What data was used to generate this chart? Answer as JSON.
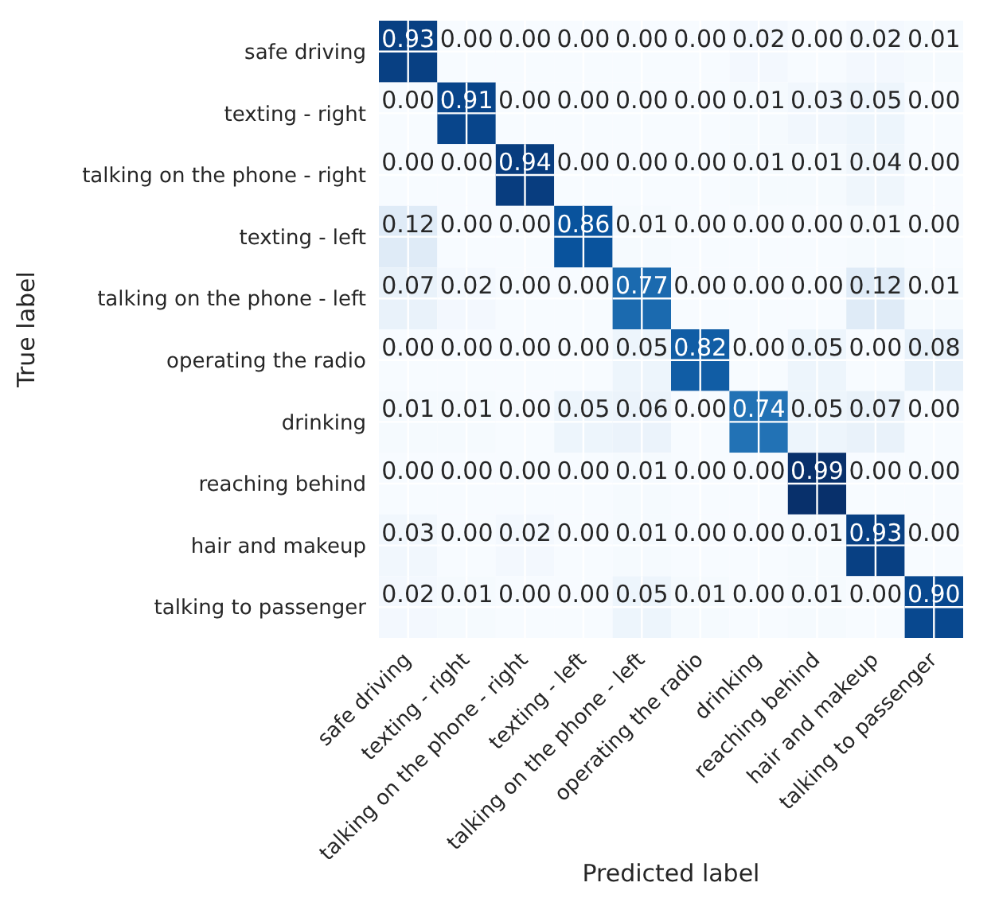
{
  "chart_data": {
    "type": "heatmap",
    "xlabel": "Predicted label",
    "ylabel": "True label",
    "grid": true,
    "categories": [
      "safe driving",
      "texting - right",
      "talking on the phone - right",
      "texting - left",
      "talking on the phone - left",
      "operating the radio",
      "drinking",
      "reaching behind",
      "hair and makeup",
      "talking to passenger"
    ],
    "y_categories": [
      "safe driving",
      "texting - right",
      "talking on the phone - right",
      "texting - left",
      "talking on the phone - left",
      "operating the radio",
      "drinking",
      "reaching behind",
      "hair and makeup",
      "talking to passenger"
    ],
    "cells": [
      [
        0.93,
        0,
        0,
        0,
        0,
        0,
        0.02,
        0,
        0.02,
        0.01
      ],
      [
        0,
        0.91,
        0,
        0,
        0,
        0,
        0.01,
        0.03,
        0.05,
        0
      ],
      [
        0,
        0,
        0.94,
        0,
        0,
        0,
        0.01,
        0.01,
        0.04,
        0
      ],
      [
        0.12,
        0,
        0,
        0.86,
        0.01,
        0,
        0,
        0,
        0.01,
        0
      ],
      [
        0.07,
        0.02,
        0,
        0,
        0.77,
        0,
        0,
        0,
        0.12,
        0.01
      ],
      [
        0,
        0,
        0,
        0,
        0.05,
        0.82,
        0,
        0.05,
        0,
        0.08
      ],
      [
        0.01,
        0.01,
        0,
        0.05,
        0.06,
        0,
        0.74,
        0.05,
        0.07,
        0
      ],
      [
        0,
        0,
        0,
        0,
        0.01,
        0,
        0,
        0.99,
        0,
        0
      ],
      [
        0.03,
        0,
        0.02,
        0,
        0.01,
        0,
        0,
        0.01,
        0.93,
        0
      ],
      [
        0.02,
        0.01,
        0,
        0,
        0.05,
        0.01,
        0,
        0.01,
        0,
        0.9
      ]
    ],
    "cell_labels": [
      [
        "0.93",
        "0.00",
        "0.00",
        "0.00",
        "0.00",
        "0.00",
        "0.02",
        "0.00",
        "0.02",
        "0.01"
      ],
      [
        "0.00",
        "0.91",
        "0.00",
        "0.00",
        "0.00",
        "0.00",
        "0.01",
        "0.03",
        "0.05",
        "0.00"
      ],
      [
        "0.00",
        "0.00",
        "0.94",
        "0.00",
        "0.00",
        "0.00",
        "0.01",
        "0.01",
        "0.04",
        "0.00"
      ],
      [
        "0.12",
        "0.00",
        "0.00",
        "0.86",
        "0.01",
        "0.00",
        "0.00",
        "0.00",
        "0.01",
        "0.00"
      ],
      [
        "0.07",
        "0.02",
        "0.00",
        "0.00",
        "0.77",
        "0.00",
        "0.00",
        "0.00",
        "0.12",
        "0.01"
      ],
      [
        "0.00",
        "0.00",
        "0.00",
        "0.00",
        "0.05",
        "0.82",
        "0.00",
        "0.05",
        "0.00",
        "0.08"
      ],
      [
        "0.01",
        "0.01",
        "0.00",
        "0.05",
        "0.06",
        "0.00",
        "0.74",
        "0.05",
        "0.07",
        "0.00"
      ],
      [
        "0.00",
        "0.00",
        "0.00",
        "0.00",
        "0.01",
        "0.00",
        "0.00",
        "0.99",
        "0.00",
        "0.00"
      ],
      [
        "0.03",
        "0.00",
        "0.02",
        "0.00",
        "0.01",
        "0.00",
        "0.00",
        "0.01",
        "0.93",
        "0.00"
      ],
      [
        "0.02",
        "0.01",
        "0.00",
        "0.00",
        "0.05",
        "0.01",
        "0.00",
        "0.01",
        "0.00",
        "0.90"
      ]
    ]
  }
}
